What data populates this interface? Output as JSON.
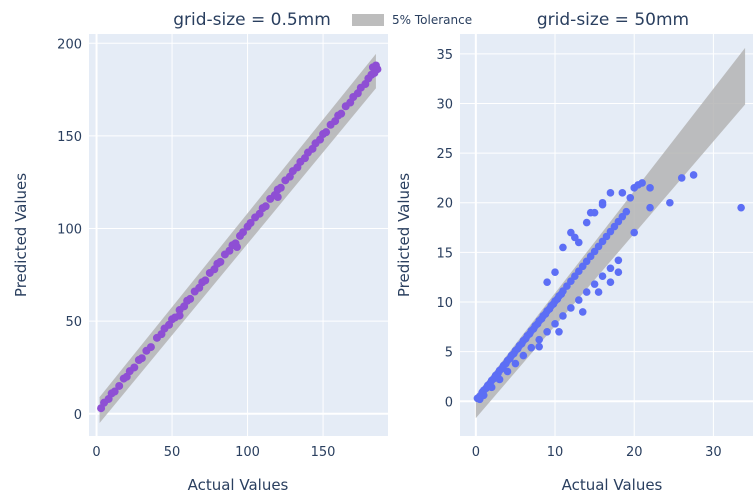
{
  "legend": {
    "label": "5% Tolerance",
    "color": "#bdbdbd"
  },
  "chart_data": [
    {
      "type": "scatter",
      "title": "grid-size = 0.5mm",
      "xlabel": "Actual Values",
      "ylabel": "Predicted Values",
      "xlim": [
        -5,
        193
      ],
      "ylim": [
        -12,
        205
      ],
      "xticks": [
        0,
        50,
        100,
        150
      ],
      "yticks": [
        0,
        50,
        100,
        150,
        200
      ],
      "grid": true,
      "point_color": "#8e4fd4",
      "band": {
        "name": "5% Tolerance",
        "x": [
          2,
          185
        ],
        "upper": [
          9.0,
          194.3
        ],
        "lower": [
          -5.0,
          175.7
        ],
        "color": "#b4b4b4"
      },
      "series": [
        {
          "name": "",
          "x": [
            3,
            5,
            8,
            10,
            12,
            15,
            18,
            20,
            22,
            25,
            28,
            30,
            33,
            36,
            40,
            43,
            45,
            48,
            50,
            52,
            55,
            58,
            60,
            62,
            65,
            68,
            70,
            72,
            75,
            78,
            80,
            82,
            85,
            88,
            90,
            92,
            95,
            97,
            100,
            102,
            105,
            108,
            110,
            112,
            115,
            118,
            120,
            122,
            125,
            128,
            130,
            133,
            135,
            138,
            140,
            143,
            145,
            148,
            150,
            152,
            155,
            158,
            160,
            162,
            165,
            168,
            170,
            173,
            175,
            178,
            180,
            182,
            183,
            185,
            186,
            184,
            120,
            93,
            55
          ],
          "y": [
            3,
            6,
            8,
            11,
            12,
            15,
            19,
            20,
            23,
            25,
            29,
            30,
            34,
            36,
            41,
            43,
            46,
            48,
            51,
            52,
            56,
            58,
            61,
            62,
            66,
            68,
            71,
            72,
            76,
            78,
            81,
            82,
            86,
            88,
            91,
            92,
            96,
            98,
            101,
            103,
            106,
            108,
            111,
            112,
            116,
            118,
            121,
            122,
            126,
            128,
            131,
            133,
            136,
            138,
            141,
            143,
            146,
            148,
            151,
            152,
            156,
            158,
            161,
            162,
            166,
            168,
            171,
            173,
            176,
            178,
            181,
            183,
            187,
            188,
            186,
            184,
            117,
            90,
            53
          ]
        }
      ]
    },
    {
      "type": "scatter",
      "title": "grid-size = 50mm",
      "xlabel": "Actual Values",
      "ylabel": "Predicted Values",
      "xlim": [
        -2,
        35
      ],
      "ylim": [
        -3.5,
        37
      ],
      "xticks": [
        0,
        10,
        20,
        30
      ],
      "yticks": [
        0,
        5,
        10,
        15,
        20,
        25,
        30,
        35
      ],
      "grid": true,
      "point_color": "#5c6ef5",
      "band": {
        "name": "5% Tolerance",
        "x": [
          0,
          34
        ],
        "upper": [
          0.6,
          35.6
        ],
        "lower": [
          -1.7,
          29.9
        ],
        "color": "#b4b4b4"
      },
      "series": [
        {
          "name": "",
          "x": [
            0.2,
            0.5,
            0.8,
            1,
            1.3,
            1.5,
            1.8,
            2,
            2.3,
            2.5,
            2.8,
            3,
            3.3,
            3.5,
            3.8,
            4,
            4.3,
            4.5,
            4.8,
            5,
            5.3,
            5.5,
            5.8,
            6,
            6.3,
            6.5,
            6.8,
            7,
            7.3,
            7.5,
            7.8,
            8,
            8.3,
            8.5,
            8.8,
            9,
            9.3,
            9.5,
            9.8,
            10,
            10.3,
            10.5,
            10.8,
            11,
            11.5,
            12,
            12.5,
            13,
            13.5,
            14,
            14.5,
            15,
            15.5,
            16,
            16.5,
            17,
            17.5,
            18,
            18.5,
            19,
            20,
            20.5,
            21,
            22,
            24.5,
            26,
            27.5,
            33.5,
            13,
            12,
            14,
            15,
            16,
            17,
            18.5,
            19.5,
            20,
            22,
            11,
            12.5,
            14.5,
            16,
            9,
            10,
            15.5,
            17,
            18,
            8,
            10.5,
            13.5
          ],
          "y": [
            0.3,
            0.5,
            0.9,
            1.1,
            1.3,
            1.6,
            1.8,
            2.1,
            2.3,
            2.6,
            2.8,
            3.1,
            3.3,
            3.6,
            3.8,
            4.1,
            4.3,
            4.6,
            4.8,
            5.1,
            5.3,
            5.6,
            5.8,
            6.1,
            6.3,
            6.6,
            6.8,
            7.1,
            7.3,
            7.6,
            7.8,
            8.1,
            8.3,
            8.6,
            8.8,
            9.1,
            9.3,
            9.6,
            9.8,
            10.1,
            10.3,
            10.6,
            10.8,
            11.1,
            11.6,
            12.1,
            12.6,
            13.1,
            13.6,
            14.1,
            14.6,
            15.1,
            15.6,
            16.1,
            16.6,
            17.1,
            17.6,
            18.1,
            18.6,
            19.1,
            21.5,
            21.8,
            22,
            21.5,
            20,
            22.5,
            22.8,
            19.5,
            16,
            17,
            18,
            19,
            20,
            21,
            21,
            20.5,
            17,
            19.5,
            15.5,
            16.5,
            19,
            19.8,
            12,
            13,
            11,
            12,
            13,
            5.5,
            7,
            9
          ]
        },
        {
          "name": "",
          "x": [
            0.5,
            1,
            2,
            3,
            4,
            5,
            6,
            7,
            8,
            9,
            10,
            11,
            12,
            13,
            14,
            15,
            16,
            17,
            18
          ],
          "y": [
            0.2,
            0.6,
            1.4,
            2.2,
            3.0,
            3.8,
            4.6,
            5.4,
            6.2,
            7.0,
            7.8,
            8.6,
            9.4,
            10.2,
            11.0,
            11.8,
            12.6,
            13.4,
            14.2
          ]
        }
      ]
    }
  ]
}
